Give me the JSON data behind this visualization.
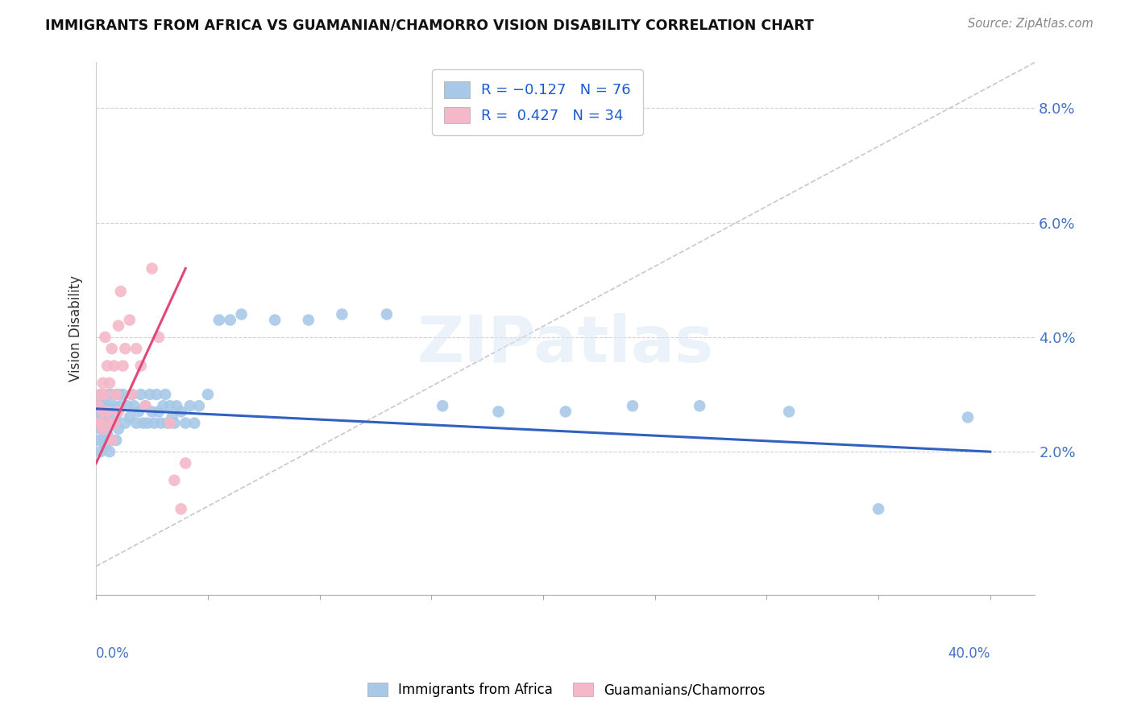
{
  "title": "IMMIGRANTS FROM AFRICA VS GUAMANIAN/CHAMORRO VISION DISABILITY CORRELATION CHART",
  "source": "Source: ZipAtlas.com",
  "ylabel": "Vision Disability",
  "xlim": [
    0.0,
    0.42
  ],
  "ylim": [
    -0.005,
    0.088
  ],
  "color_blue": "#a8c8e8",
  "color_pink": "#f4b8c8",
  "color_blue_line": "#3060c0",
  "color_pink_line": "#e04878",
  "color_dashed": "#c8c8c8",
  "watermark": "ZIPatlas",
  "blue_scatter_x": [
    0.001,
    0.001,
    0.001,
    0.002,
    0.002,
    0.002,
    0.002,
    0.003,
    0.003,
    0.003,
    0.003,
    0.003,
    0.004,
    0.004,
    0.004,
    0.005,
    0.005,
    0.005,
    0.006,
    0.006,
    0.006,
    0.007,
    0.007,
    0.008,
    0.008,
    0.009,
    0.009,
    0.01,
    0.01,
    0.011,
    0.012,
    0.013,
    0.014,
    0.015,
    0.016,
    0.017,
    0.018,
    0.019,
    0.02,
    0.021,
    0.022,
    0.023,
    0.024,
    0.025,
    0.026,
    0.027,
    0.028,
    0.029,
    0.03,
    0.031,
    0.032,
    0.033,
    0.034,
    0.035,
    0.036,
    0.038,
    0.04,
    0.042,
    0.044,
    0.046,
    0.05,
    0.055,
    0.06,
    0.065,
    0.08,
    0.095,
    0.11,
    0.13,
    0.155,
    0.18,
    0.21,
    0.24,
    0.27,
    0.31,
    0.35,
    0.39
  ],
  "blue_scatter_y": [
    0.025,
    0.027,
    0.022,
    0.02,
    0.024,
    0.028,
    0.03,
    0.022,
    0.026,
    0.029,
    0.024,
    0.027,
    0.021,
    0.025,
    0.028,
    0.023,
    0.026,
    0.03,
    0.02,
    0.025,
    0.028,
    0.022,
    0.03,
    0.025,
    0.028,
    0.022,
    0.026,
    0.024,
    0.03,
    0.028,
    0.03,
    0.025,
    0.028,
    0.026,
    0.03,
    0.028,
    0.025,
    0.027,
    0.03,
    0.025,
    0.028,
    0.025,
    0.03,
    0.027,
    0.025,
    0.03,
    0.027,
    0.025,
    0.028,
    0.03,
    0.025,
    0.028,
    0.026,
    0.025,
    0.028,
    0.027,
    0.025,
    0.028,
    0.025,
    0.028,
    0.03,
    0.043,
    0.043,
    0.044,
    0.043,
    0.043,
    0.044,
    0.044,
    0.028,
    0.027,
    0.027,
    0.028,
    0.028,
    0.027,
    0.01,
    0.026
  ],
  "pink_scatter_x": [
    0.001,
    0.001,
    0.002,
    0.002,
    0.003,
    0.003,
    0.003,
    0.004,
    0.004,
    0.005,
    0.005,
    0.006,
    0.006,
    0.007,
    0.007,
    0.008,
    0.008,
    0.009,
    0.01,
    0.01,
    0.011,
    0.012,
    0.013,
    0.015,
    0.016,
    0.018,
    0.02,
    0.022,
    0.025,
    0.028,
    0.033,
    0.035,
    0.038,
    0.04
  ],
  "pink_scatter_y": [
    0.025,
    0.028,
    0.025,
    0.03,
    0.027,
    0.024,
    0.032,
    0.03,
    0.04,
    0.027,
    0.035,
    0.025,
    0.032,
    0.022,
    0.038,
    0.025,
    0.035,
    0.03,
    0.042,
    0.027,
    0.048,
    0.035,
    0.038,
    0.043,
    0.03,
    0.038,
    0.035,
    0.028,
    0.052,
    0.04,
    0.025,
    0.015,
    0.01,
    0.018
  ]
}
